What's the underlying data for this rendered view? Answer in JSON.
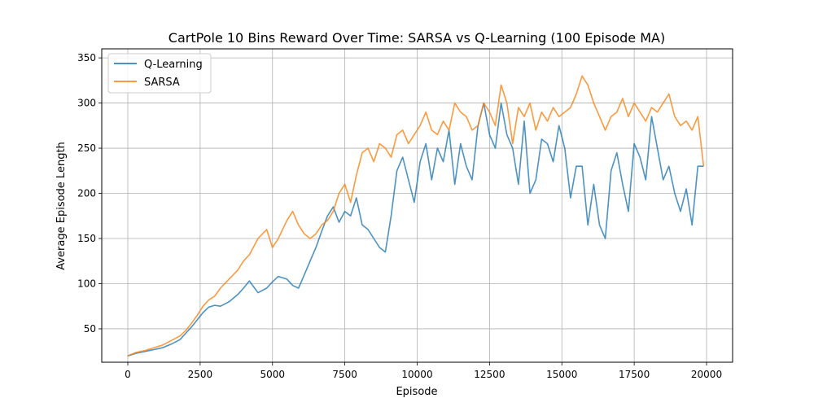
{
  "chart_data": {
    "type": "line",
    "title": "CartPole 10 Bins Reward Over Time: SARSA vs Q-Learning (100 Episode MA)",
    "xlabel": "Episode",
    "ylabel": "Average Episode Length",
    "xlim": [
      -900,
      20900
    ],
    "ylim": [
      13,
      360
    ],
    "xticks": [
      0,
      2500,
      5000,
      7500,
      10000,
      12500,
      15000,
      17500,
      20000
    ],
    "yticks": [
      50,
      100,
      150,
      200,
      250,
      300,
      350
    ],
    "grid": true,
    "legend_position": "top-left",
    "series": [
      {
        "name": "Q-Learning",
        "color": "#1f77b4",
        "x": [
          0,
          300,
          600,
          900,
          1200,
          1500,
          1800,
          2000,
          2200,
          2400,
          2600,
          2800,
          3000,
          3200,
          3500,
          3800,
          4000,
          4200,
          4500,
          4800,
          5000,
          5200,
          5500,
          5700,
          5900,
          6100,
          6300,
          6500,
          6700,
          6900,
          7100,
          7300,
          7500,
          7700,
          7900,
          8100,
          8300,
          8500,
          8700,
          8900,
          9100,
          9300,
          9500,
          9700,
          9900,
          10100,
          10300,
          10500,
          10700,
          10900,
          11100,
          11300,
          11500,
          11700,
          11900,
          12100,
          12300,
          12500,
          12700,
          12900,
          13100,
          13300,
          13500,
          13700,
          13900,
          14100,
          14300,
          14500,
          14700,
          14900,
          15100,
          15300,
          15500,
          15700,
          15900,
          16100,
          16300,
          16500,
          16700,
          16900,
          17100,
          17300,
          17500,
          17700,
          17900,
          18100,
          18300,
          18500,
          18700,
          18900,
          19100,
          19300,
          19500,
          19700,
          19900
        ],
        "values": [
          20,
          23,
          25,
          27,
          29,
          33,
          38,
          45,
          52,
          60,
          68,
          74,
          76,
          75,
          80,
          88,
          95,
          103,
          90,
          95,
          102,
          108,
          105,
          98,
          95,
          110,
          125,
          140,
          158,
          175,
          185,
          168,
          180,
          175,
          195,
          165,
          160,
          150,
          140,
          135,
          175,
          225,
          240,
          215,
          190,
          235,
          255,
          215,
          250,
          235,
          270,
          210,
          255,
          230,
          215,
          275,
          300,
          265,
          250,
          300,
          265,
          250,
          210,
          280,
          200,
          215,
          260,
          255,
          235,
          275,
          250,
          195,
          230,
          230,
          165,
          210,
          165,
          150,
          225,
          245,
          210,
          180,
          255,
          240,
          215,
          285,
          250,
          215,
          230,
          200,
          180,
          205,
          165,
          230,
          230
        ]
      },
      {
        "name": "SARSA",
        "color": "#ff7f0e",
        "x": [
          0,
          300,
          600,
          900,
          1200,
          1500,
          1800,
          2000,
          2200,
          2400,
          2600,
          2800,
          3000,
          3200,
          3500,
          3800,
          4000,
          4200,
          4500,
          4800,
          5000,
          5200,
          5500,
          5700,
          5900,
          6100,
          6300,
          6500,
          6700,
          6900,
          7100,
          7300,
          7500,
          7700,
          7900,
          8100,
          8300,
          8500,
          8700,
          8900,
          9100,
          9300,
          9500,
          9700,
          9900,
          10100,
          10300,
          10500,
          10700,
          10900,
          11100,
          11300,
          11500,
          11700,
          11900,
          12100,
          12300,
          12500,
          12700,
          12900,
          13100,
          13300,
          13500,
          13700,
          13900,
          14100,
          14300,
          14500,
          14700,
          14900,
          15100,
          15300,
          15500,
          15700,
          15900,
          16100,
          16300,
          16500,
          16700,
          16900,
          17100,
          17300,
          17500,
          17700,
          17900,
          18100,
          18300,
          18500,
          18700,
          18900,
          19100,
          19300,
          19500,
          19700,
          19900
        ],
        "values": [
          20,
          24,
          26,
          29,
          32,
          37,
          42,
          48,
          56,
          65,
          75,
          82,
          86,
          95,
          105,
          115,
          125,
          132,
          150,
          160,
          140,
          150,
          170,
          180,
          165,
          155,
          150,
          155,
          165,
          170,
          180,
          200,
          210,
          190,
          220,
          245,
          250,
          235,
          255,
          250,
          240,
          265,
          270,
          255,
          265,
          275,
          290,
          270,
          265,
          280,
          270,
          300,
          290,
          285,
          270,
          275,
          300,
          290,
          275,
          320,
          300,
          255,
          295,
          285,
          300,
          270,
          290,
          280,
          295,
          285,
          290,
          295,
          310,
          330,
          320,
          300,
          285,
          270,
          285,
          290,
          305,
          285,
          300,
          290,
          280,
          295,
          290,
          300,
          310,
          285,
          275,
          280,
          270,
          285,
          230
        ]
      }
    ]
  }
}
